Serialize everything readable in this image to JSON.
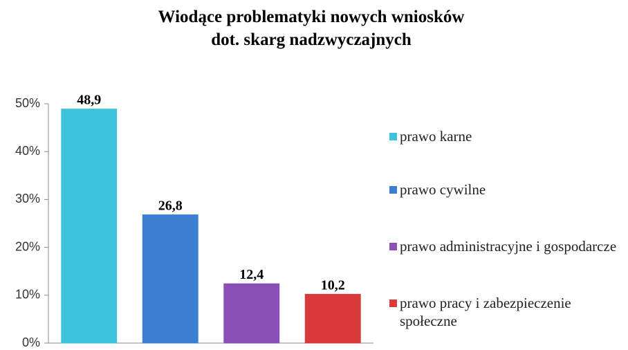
{
  "chart_data": {
    "type": "bar",
    "title": "Wiodące problematyki nowych wniosków\ndot. skarg nadzwyczajnych",
    "categories": [
      "prawo karne",
      "prawo cywilne",
      "prawo administracyjne i gospodarcze",
      "prawo pracy i zabezpieczenie społeczne"
    ],
    "values": [
      48.9,
      26.8,
      12.4,
      10.2
    ],
    "value_labels": [
      "48,9",
      "26,8",
      "12,4",
      "10,2"
    ],
    "colors": [
      "#3ec3dc",
      "#3b7fd2",
      "#8b4fb8",
      "#d93b3b"
    ],
    "ylim": [
      0,
      50
    ],
    "yticks": [
      {
        "value": 0,
        "label": "0%"
      },
      {
        "value": 10,
        "label": "10%"
      },
      {
        "value": 20,
        "label": "20%"
      },
      {
        "value": 30,
        "label": "30%"
      },
      {
        "value": 40,
        "label": "40%"
      },
      {
        "value": 50,
        "label": "50%"
      }
    ],
    "legend": "right"
  }
}
